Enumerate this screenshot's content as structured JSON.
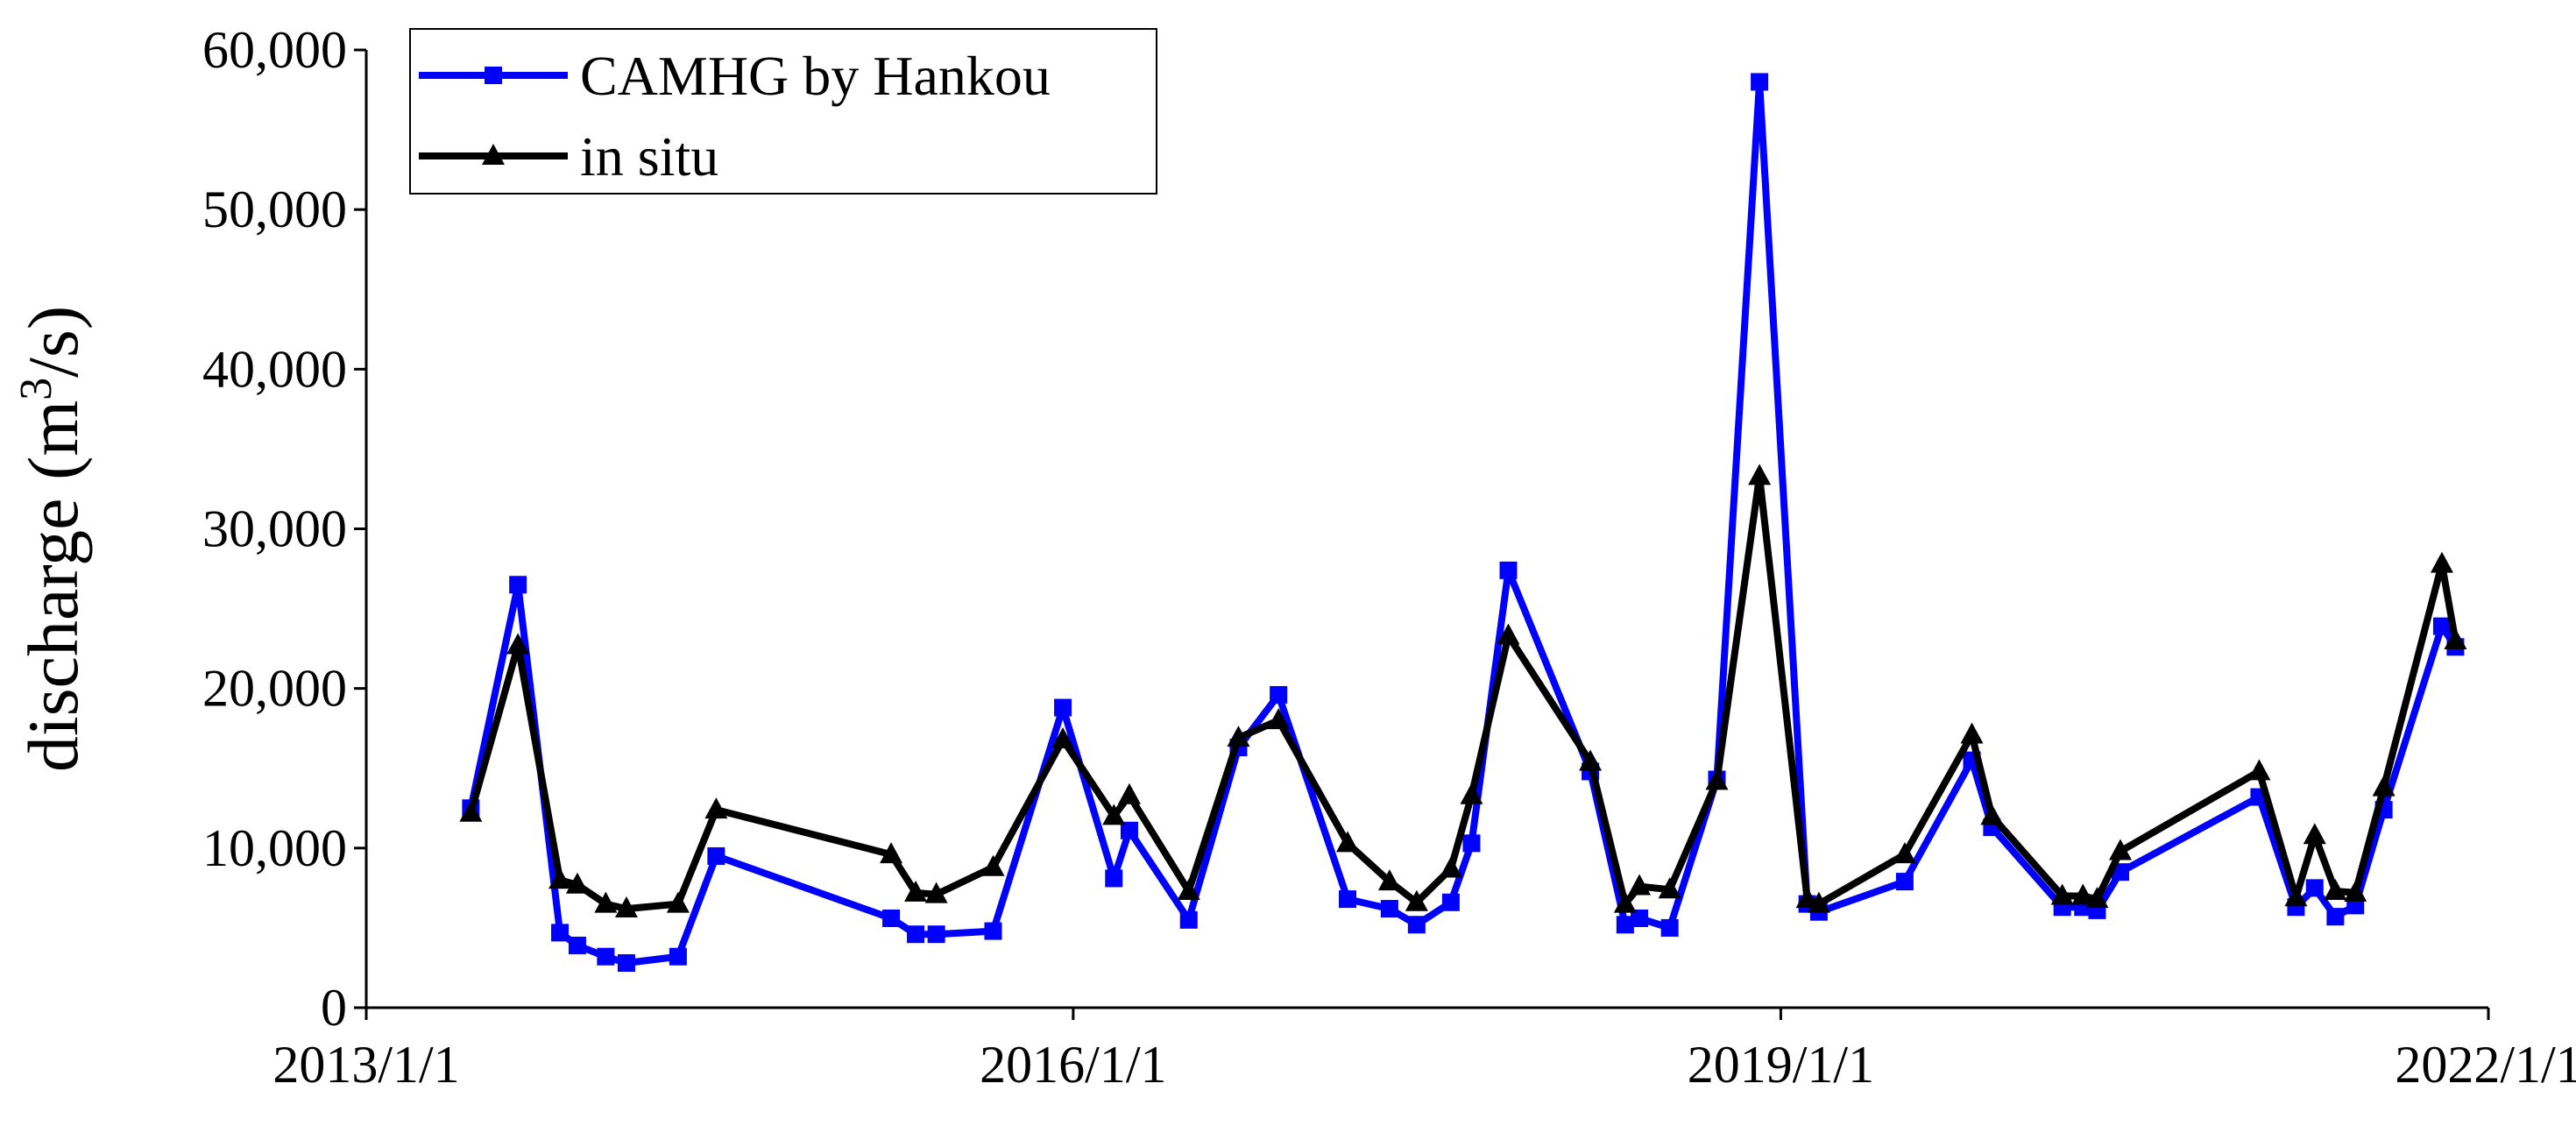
{
  "chart_data": {
    "type": "line",
    "title": "",
    "xlabel": "",
    "ylabel": "discharge (m³/s)",
    "ylabel_parts": {
      "before": "discharge (m",
      "sup": "3",
      "after": "/s)"
    },
    "xlim": [
      "2013-01-01",
      "2022-01-01"
    ],
    "ylim": [
      0,
      60000
    ],
    "x_ticks": [
      "2013/1/1",
      "2016/1/1",
      "2019/1/1",
      "2022/1/1"
    ],
    "y_ticks": [
      "0",
      "10,000",
      "20,000",
      "30,000",
      "40,000",
      "50,000",
      "60,000"
    ],
    "y_tick_values": [
      0,
      10000,
      20000,
      30000,
      40000,
      50000,
      60000
    ],
    "grid": false,
    "legend_position": "top-left",
    "series": [
      {
        "name": "CAMHG by Hankou",
        "color": "#0000ff",
        "marker": "square",
        "points": [
          [
            "2013-06-12",
            12500
          ],
          [
            "2013-08-24",
            26500
          ],
          [
            "2013-10-28",
            4700
          ],
          [
            "2013-11-24",
            3900
          ],
          [
            "2014-01-07",
            3200
          ],
          [
            "2014-02-08",
            2800
          ],
          [
            "2014-04-29",
            3200
          ],
          [
            "2014-06-27",
            9500
          ],
          [
            "2015-03-25",
            5600
          ],
          [
            "2015-05-02",
            4600
          ],
          [
            "2015-06-03",
            4600
          ],
          [
            "2015-08-30",
            4800
          ],
          [
            "2015-12-16",
            18800
          ],
          [
            "2016-03-04",
            8100
          ],
          [
            "2016-03-28",
            11100
          ],
          [
            "2016-06-28",
            5500
          ],
          [
            "2016-09-13",
            16300
          ],
          [
            "2016-11-14",
            19600
          ],
          [
            "2017-03-01",
            6800
          ],
          [
            "2017-05-05",
            6200
          ],
          [
            "2017-06-16",
            5200
          ],
          [
            "2017-08-08",
            6600
          ],
          [
            "2017-09-09",
            10300
          ],
          [
            "2017-11-05",
            27400
          ],
          [
            "2018-03-12",
            14800
          ],
          [
            "2018-05-05",
            5200
          ],
          [
            "2018-05-27",
            5600
          ],
          [
            "2018-07-13",
            5000
          ],
          [
            "2018-09-24",
            14300
          ],
          [
            "2018-11-29",
            58000
          ],
          [
            "2019-02-11",
            6500
          ],
          [
            "2019-03-01",
            6000
          ],
          [
            "2019-07-12",
            7900
          ],
          [
            "2019-10-24",
            15500
          ],
          [
            "2019-11-24",
            11300
          ],
          [
            "2020-03-12",
            6300
          ],
          [
            "2020-04-13",
            6300
          ],
          [
            "2020-05-05",
            6100
          ],
          [
            "2020-06-10",
            8500
          ],
          [
            "2021-01-11",
            13200
          ],
          [
            "2021-03-09",
            6300
          ],
          [
            "2021-04-07",
            7500
          ],
          [
            "2021-05-09",
            5700
          ],
          [
            "2021-06-09",
            6400
          ],
          [
            "2021-07-23",
            12400
          ],
          [
            "2021-10-21",
            23900
          ],
          [
            "2021-11-11",
            22600
          ]
        ]
      },
      {
        "name": "in situ",
        "color": "#000000",
        "marker": "triangle",
        "points": [
          [
            "2013-06-12",
            12200
          ],
          [
            "2013-08-24",
            22700
          ],
          [
            "2013-10-28",
            8000
          ],
          [
            "2013-11-24",
            7700
          ],
          [
            "2014-01-07",
            6500
          ],
          [
            "2014-02-08",
            6200
          ],
          [
            "2014-04-29",
            6500
          ],
          [
            "2014-06-27",
            12400
          ],
          [
            "2015-03-25",
            9600
          ],
          [
            "2015-05-02",
            7200
          ],
          [
            "2015-06-03",
            7100
          ],
          [
            "2015-08-30",
            8800
          ],
          [
            "2015-12-16",
            16800
          ],
          [
            "2016-03-04",
            12000
          ],
          [
            "2016-03-28",
            13300
          ],
          [
            "2016-06-28",
            7300
          ],
          [
            "2016-09-13",
            16900
          ],
          [
            "2016-11-14",
            18000
          ],
          [
            "2017-03-01",
            10300
          ],
          [
            "2017-05-05",
            7900
          ],
          [
            "2017-06-16",
            6600
          ],
          [
            "2017-08-08",
            8700
          ],
          [
            "2017-09-09",
            13300
          ],
          [
            "2017-11-05",
            23300
          ],
          [
            "2018-03-12",
            15400
          ],
          [
            "2018-05-05",
            6500
          ],
          [
            "2018-05-27",
            7600
          ],
          [
            "2018-07-13",
            7400
          ],
          [
            "2018-09-24",
            14200
          ],
          [
            "2018-11-29",
            33300
          ],
          [
            "2019-02-11",
            6800
          ],
          [
            "2019-03-01",
            6500
          ],
          [
            "2019-07-12",
            9600
          ],
          [
            "2019-10-24",
            17100
          ],
          [
            "2019-11-24",
            12000
          ],
          [
            "2020-03-12",
            7000
          ],
          [
            "2020-04-13",
            7000
          ],
          [
            "2020-05-05",
            6800
          ],
          [
            "2020-06-10",
            9800
          ],
          [
            "2021-01-11",
            14800
          ],
          [
            "2021-03-09",
            6900
          ],
          [
            "2021-04-07",
            10800
          ],
          [
            "2021-05-09",
            7300
          ],
          [
            "2021-06-09",
            7200
          ],
          [
            "2021-07-23",
            13800
          ],
          [
            "2021-10-21",
            27800
          ],
          [
            "2021-11-11",
            23000
          ]
        ]
      }
    ]
  }
}
